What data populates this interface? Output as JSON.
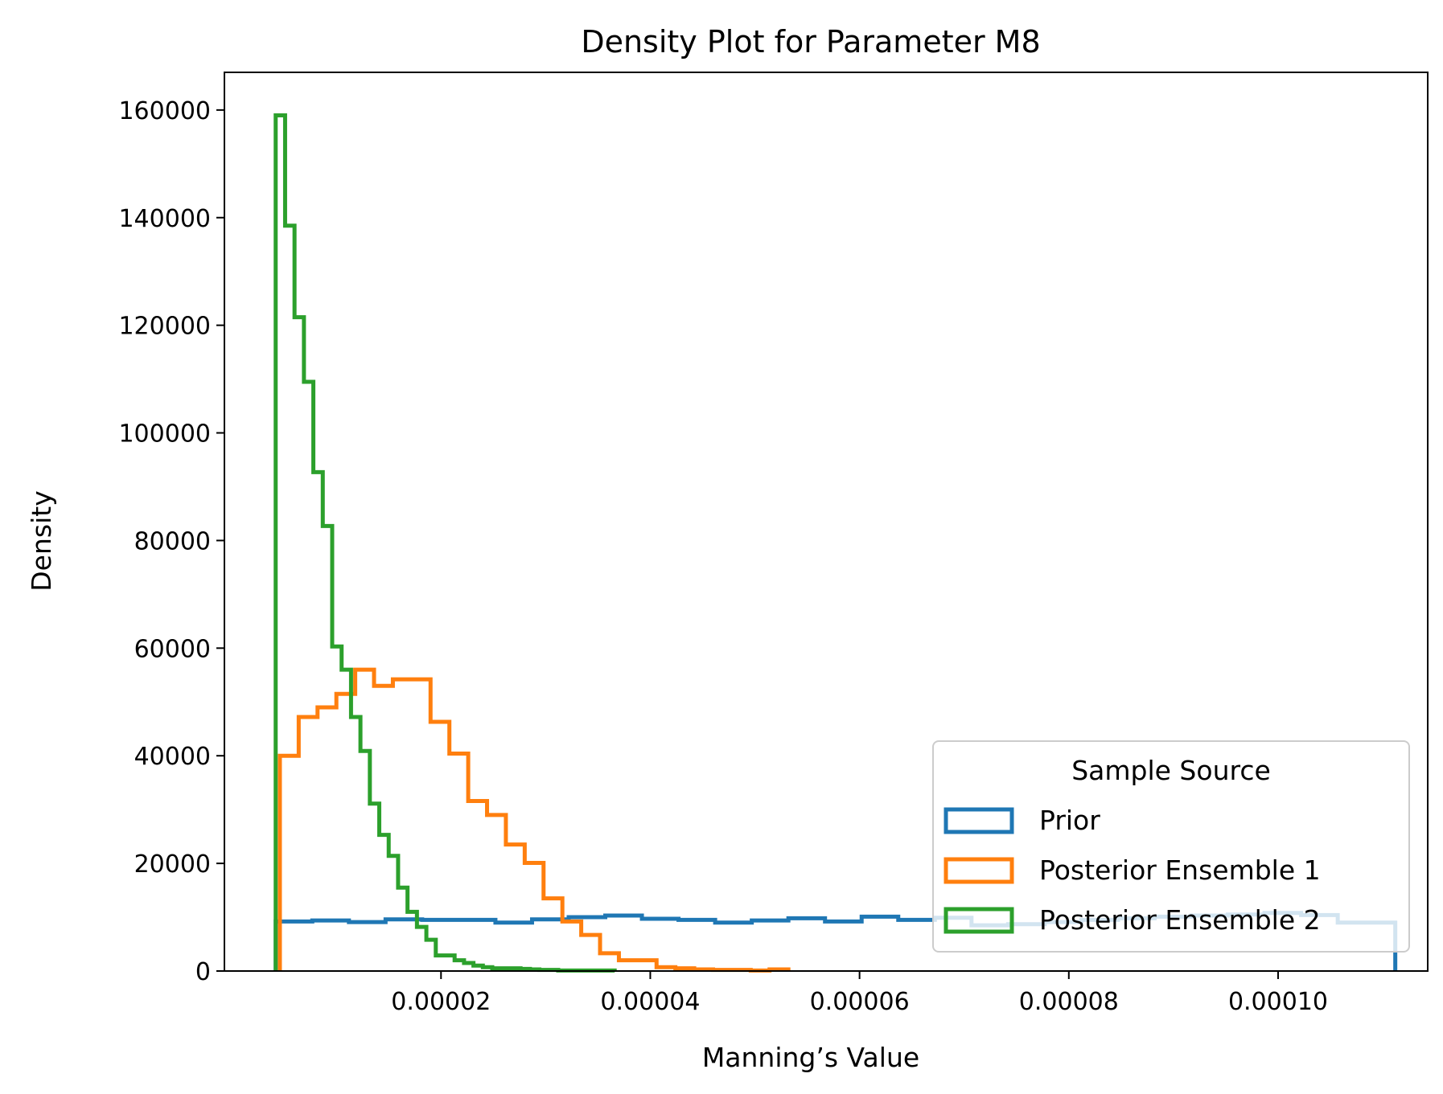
{
  "chart_data": {
    "type": "histogram",
    "histtype": "step",
    "title": "Density Plot for Parameter M8",
    "xlabel": "Manning’s Value",
    "ylabel": "Density",
    "xlim": [
      -7e-07,
      0.0001143
    ],
    "ylim": [
      0,
      167000
    ],
    "x_ticks": [
      2e-05,
      4e-05,
      6e-05,
      8e-05,
      0.0001
    ],
    "x_tick_labels": [
      "0.00002",
      "0.00004",
      "0.00006",
      "0.00008",
      "0.00010"
    ],
    "y_ticks": [
      0,
      20000,
      40000,
      60000,
      80000,
      100000,
      120000,
      140000,
      160000
    ],
    "y_tick_labels": [
      "0",
      "20000",
      "40000",
      "60000",
      "80000",
      "100000",
      "120000",
      "140000",
      "160000"
    ],
    "grid": false,
    "legend": {
      "title": "Sample Source",
      "position": "lower right"
    },
    "series": [
      {
        "name": "Prior",
        "color": "#1f77b4",
        "edges": [
          4.2e-06,
          7.7e-06,
          1.12e-05,
          1.47e-05,
          1.82e-05,
          2.17e-05,
          2.52e-05,
          2.87e-05,
          3.22e-05,
          3.57e-05,
          3.92e-05,
          4.27e-05,
          4.62e-05,
          4.97e-05,
          5.32e-05,
          5.67e-05,
          6.02e-05,
          6.37e-05,
          6.72e-05,
          7.07e-05,
          7.42e-05,
          7.77e-05,
          8.12e-05,
          8.47e-05,
          8.82e-05,
          9.17e-05,
          9.52e-05,
          9.87e-05,
          0.0001022,
          0.0001057,
          0.0001112
        ],
        "values": [
          9200,
          9400,
          9100,
          9600,
          9500,
          9500,
          9000,
          9600,
          10000,
          10300,
          9700,
          9500,
          9000,
          9400,
          9800,
          9200,
          10100,
          9500,
          9900,
          8500,
          8700,
          9100,
          9500,
          9800,
          10100,
          10300,
          10500,
          10800,
          10400,
          9000
        ]
      },
      {
        "name": "Posterior Ensemble 1",
        "color": "#ff7f0e",
        "edges": [
          4.6e-06,
          6.4e-06,
          8.2e-06,
          1e-05,
          1.18e-05,
          1.36e-05,
          1.54e-05,
          1.72e-05,
          1.9e-05,
          2.08e-05,
          2.26e-05,
          2.44e-05,
          2.62e-05,
          2.8e-05,
          2.98e-05,
          3.16e-05,
          3.34e-05,
          3.52e-05,
          3.7e-05,
          3.88e-05,
          4.06e-05,
          4.24e-05,
          4.42e-05,
          4.6e-05,
          4.78e-05,
          4.96e-05,
          5.14e-05,
          5.32e-05
        ],
        "values": [
          40000,
          47200,
          49000,
          51500,
          56000,
          53000,
          54200,
          54200,
          46300,
          40400,
          31600,
          29000,
          23500,
          20100,
          13500,
          9200,
          6700,
          3300,
          2000,
          2000,
          700,
          500,
          300,
          200,
          200,
          100,
          300
        ]
      },
      {
        "name": "Posterior Ensemble 2",
        "color": "#2ca02c",
        "edges": [
          4.2e-06,
          5.1e-06,
          6e-06,
          6.9e-06,
          7.8e-06,
          8.7e-06,
          9.6e-06,
          1.05e-05,
          1.14e-05,
          1.23e-05,
          1.32e-05,
          1.41e-05,
          1.5e-05,
          1.59e-05,
          1.68e-05,
          1.77e-05,
          1.86e-05,
          1.95e-05,
          2.04e-05,
          2.13e-05,
          2.22e-05,
          2.31e-05,
          2.4e-05,
          2.49e-05,
          2.58e-05,
          2.67e-05,
          2.76e-05,
          2.85e-05,
          2.94e-05,
          3.03e-05,
          3.12e-05,
          3.21e-05,
          3.3e-05,
          3.39e-05,
          3.48e-05,
          3.57e-05,
          3.66e-05
        ],
        "values": [
          159000,
          138500,
          121500,
          109500,
          92700,
          82700,
          60300,
          56000,
          47200,
          40900,
          31100,
          25300,
          21400,
          15500,
          11000,
          8200,
          5800,
          2900,
          2900,
          2000,
          1500,
          1000,
          700,
          500,
          500,
          500,
          400,
          300,
          200,
          200,
          100,
          100,
          100,
          100,
          100,
          100
        ]
      }
    ]
  }
}
